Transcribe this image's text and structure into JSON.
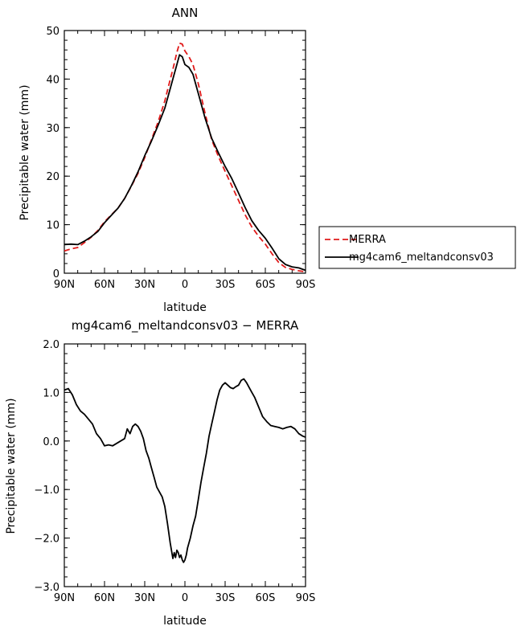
{
  "chart_data": [
    {
      "type": "line",
      "title": "ANN",
      "xlabel": "latitude",
      "ylabel": "Precipitable water (mm)",
      "xlim": [
        90,
        -90
      ],
      "ylim": [
        0,
        50
      ],
      "xticks": [
        90,
        60,
        30,
        0,
        -30,
        -60,
        -90
      ],
      "xtick_labels": [
        "90N",
        "60N",
        "30N",
        "0",
        "30S",
        "60S",
        "90S"
      ],
      "yticks": [
        0,
        10,
        20,
        30,
        40,
        50
      ],
      "ytick_labels": [
        "0",
        "10",
        "20",
        "30",
        "40",
        "50"
      ],
      "legend_position": "right",
      "series": [
        {
          "name": "MERRA",
          "color": "#e01a1a",
          "dash": "dashed",
          "x": [
            90,
            85,
            80,
            75,
            70,
            65,
            60,
            55,
            50,
            45,
            40,
            35,
            30,
            25,
            20,
            15,
            12,
            9,
            6,
            4,
            2,
            0,
            -3,
            -6,
            -10,
            -15,
            -20,
            -25,
            -30,
            -35,
            -40,
            -45,
            -50,
            -55,
            -60,
            -65,
            -70,
            -75,
            -80,
            -85,
            -90
          ],
          "y": [
            4.6,
            5.0,
            5.3,
            6.3,
            7.4,
            8.8,
            10.6,
            12.0,
            13.4,
            15.4,
            17.9,
            20.6,
            23.8,
            27.5,
            31.2,
            35.5,
            38.8,
            42.0,
            45.5,
            47.4,
            47.2,
            45.8,
            44.6,
            43.0,
            39.0,
            33.0,
            27.5,
            24.0,
            21.0,
            18.0,
            15.0,
            12.0,
            9.5,
            7.6,
            6.0,
            4.0,
            2.2,
            1.2,
            0.8,
            0.5,
            0.3
          ]
        },
        {
          "name": "mg4cam6_meltandconsv03",
          "color": "#000000",
          "dash": "solid",
          "x": [
            90,
            85,
            80,
            75,
            70,
            65,
            60,
            55,
            50,
            45,
            40,
            35,
            30,
            25,
            20,
            15,
            12,
            9,
            6,
            4,
            2,
            0,
            -3,
            -6,
            -10,
            -15,
            -20,
            -25,
            -30,
            -35,
            -40,
            -45,
            -50,
            -55,
            -60,
            -65,
            -70,
            -75,
            -80,
            -85,
            -90
          ],
          "y": [
            5.9,
            6.0,
            5.9,
            6.6,
            7.5,
            8.6,
            10.4,
            11.9,
            13.4,
            15.4,
            18.0,
            20.9,
            24.2,
            27.2,
            30.5,
            34.0,
            37.0,
            40.0,
            43.0,
            45.0,
            44.6,
            43.0,
            42.4,
            41.0,
            37.0,
            32.0,
            27.8,
            24.8,
            22.0,
            19.5,
            16.5,
            13.5,
            10.8,
            8.8,
            7.2,
            5.2,
            3.0,
            1.8,
            1.3,
            1.1,
            0.6
          ]
        }
      ]
    },
    {
      "type": "line",
      "title": "mg4cam6_meltandconsv03 − MERRA",
      "xlabel": "latitude",
      "ylabel": "Precipitable water (mm)",
      "xlim": [
        90,
        -90
      ],
      "ylim": [
        -3,
        2
      ],
      "xticks": [
        90,
        60,
        30,
        0,
        -30,
        -60,
        -90
      ],
      "xtick_labels": [
        "90N",
        "60N",
        "30N",
        "0",
        "30S",
        "60S",
        "90S"
      ],
      "yticks": [
        -3,
        -2,
        -1,
        0,
        1,
        2
      ],
      "ytick_labels": [
        "−3.0",
        "−2.0",
        "−1.0",
        "0.0",
        "1.0",
        "2.0"
      ],
      "series": [
        {
          "color": "#000000",
          "dash": "solid",
          "x": [
            90,
            87,
            84,
            81,
            78,
            75,
            72,
            69,
            66,
            63,
            60,
            57,
            54,
            51,
            48,
            45,
            43,
            41,
            39,
            37,
            35,
            33,
            31,
            29,
            27,
            25,
            23,
            21,
            19,
            17,
            15,
            13,
            11,
            9,
            8,
            7,
            6,
            5,
            4,
            3,
            2,
            1,
            0,
            -1,
            -2,
            -4,
            -6,
            -8,
            -10,
            -12,
            -14,
            -16,
            -18,
            -20,
            -22,
            -24,
            -26,
            -28,
            -30,
            -32,
            -34,
            -36,
            -38,
            -40,
            -42,
            -44,
            -46,
            -48,
            -50,
            -52,
            -55,
            -58,
            -61,
            -64,
            -67,
            -70,
            -73,
            -76,
            -79,
            -82,
            -85,
            -88,
            -90
          ],
          "y": [
            1.05,
            1.08,
            0.95,
            0.75,
            0.62,
            0.55,
            0.45,
            0.35,
            0.15,
            0.05,
            -0.1,
            -0.08,
            -0.1,
            -0.05,
            0.0,
            0.05,
            0.25,
            0.15,
            0.3,
            0.35,
            0.3,
            0.2,
            0.05,
            -0.2,
            -0.35,
            -0.55,
            -0.75,
            -0.95,
            -1.05,
            -1.15,
            -1.35,
            -1.7,
            -2.1,
            -2.42,
            -2.3,
            -2.4,
            -2.25,
            -2.3,
            -2.4,
            -2.35,
            -2.45,
            -2.5,
            -2.45,
            -2.35,
            -2.2,
            -2.0,
            -1.75,
            -1.55,
            -1.2,
            -0.85,
            -0.55,
            -0.25,
            0.1,
            0.35,
            0.6,
            0.85,
            1.05,
            1.15,
            1.2,
            1.15,
            1.1,
            1.08,
            1.12,
            1.15,
            1.25,
            1.28,
            1.2,
            1.1,
            1.0,
            0.9,
            0.7,
            0.5,
            0.4,
            0.32,
            0.3,
            0.28,
            0.25,
            0.28,
            0.3,
            0.25,
            0.15,
            0.1,
            0.08
          ]
        }
      ]
    }
  ]
}
